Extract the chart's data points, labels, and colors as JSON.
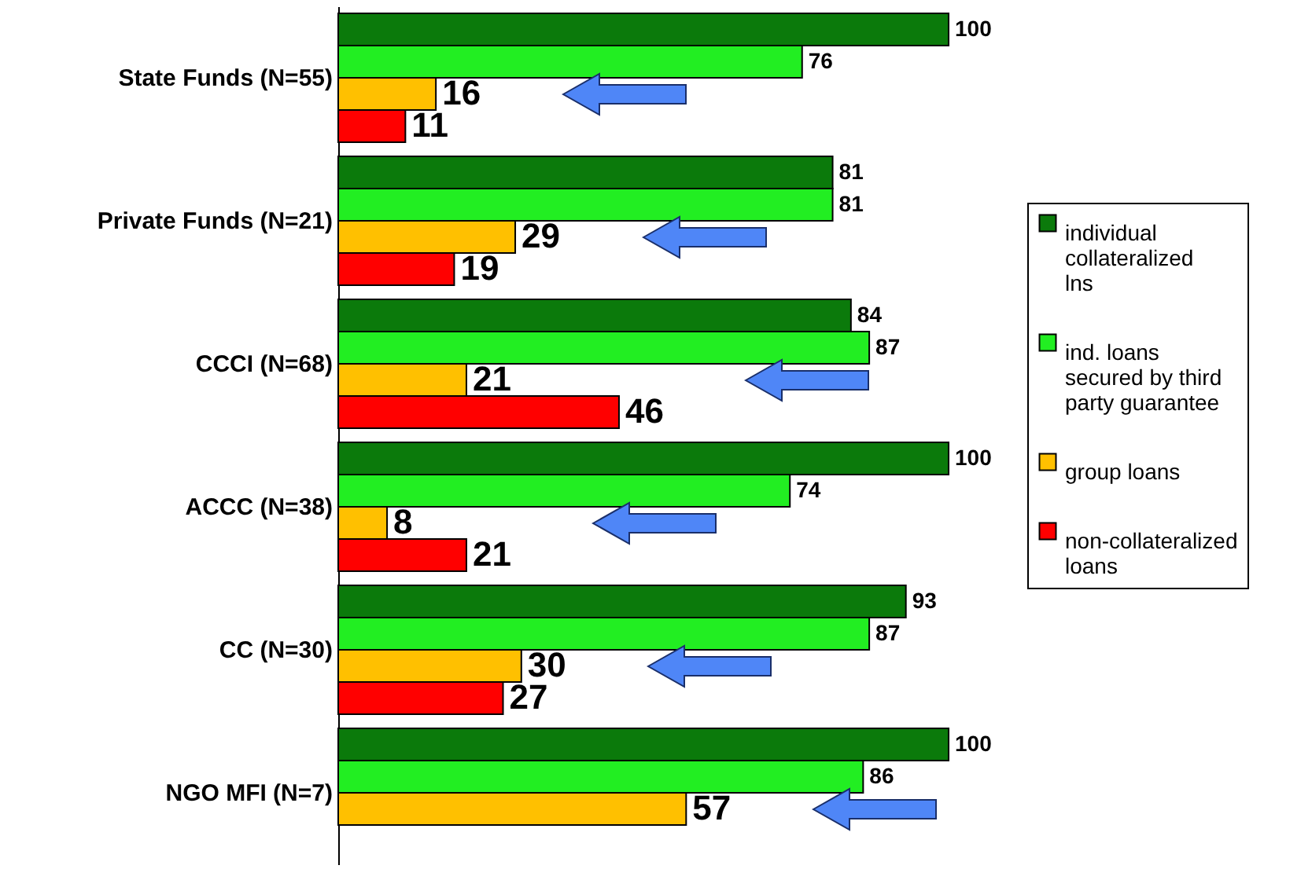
{
  "chart_data": {
    "type": "bar",
    "orientation": "horizontal",
    "data_labels": true,
    "legend": "right",
    "categories": [
      "State Funds (N=55)",
      "Private Funds (N=21)",
      "CCCI (N=68)",
      "ACCC (N=38)",
      "CC (N=30)",
      "NGO MFI (N=7)"
    ],
    "series": [
      {
        "name": "individual collateralized lns",
        "color": "#0b7a0b",
        "values": [
          100,
          81,
          84,
          100,
          93,
          100
        ]
      },
      {
        "name": "ind. loans secured by third party guarantee",
        "color": "#22ee22",
        "values": [
          76,
          81,
          87,
          74,
          87,
          86
        ]
      },
      {
        "name": "group loans",
        "color": "#ffc000",
        "values": [
          16,
          29,
          21,
          8,
          30,
          57
        ]
      },
      {
        "name": "non-collateralized loans",
        "color": "#ff0000",
        "values": [
          11,
          19,
          46,
          21,
          27,
          null
        ]
      }
    ]
  }
}
